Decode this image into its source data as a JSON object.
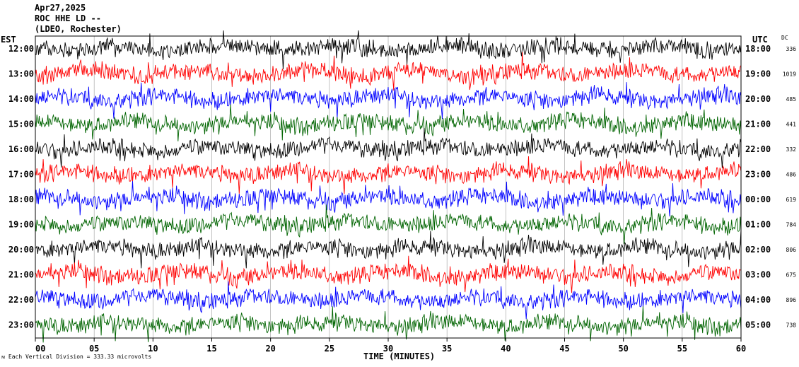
{
  "header": {
    "date": "Apr27,2025",
    "station": "ROC HHE LD --",
    "network": "(LDEO, Rochester)"
  },
  "left_axis_label": "EST",
  "right_axis_label": "UTC",
  "dc_label": "DC",
  "xlabel": "TIME (MINUTES)",
  "footer": "Each Vertical Division = 333.33 microvolts",
  "chart_data": {
    "type": "line",
    "title": "",
    "xlabel": "TIME (MINUTES)",
    "ylabel": "",
    "xlim": [
      0,
      60
    ],
    "x_ticks": [
      "00",
      "05",
      "10",
      "15",
      "20",
      "25",
      "30",
      "35",
      "40",
      "45",
      "50",
      "55",
      "60"
    ],
    "grid": true,
    "trace_colors": [
      "#000000",
      "#ff0000",
      "#0000ff",
      "#006400"
    ],
    "rows": [
      {
        "est": "12:00",
        "utc": "18:00",
        "dc": "336"
      },
      {
        "est": "13:00",
        "utc": "19:00",
        "dc": "1019"
      },
      {
        "est": "14:00",
        "utc": "20:00",
        "dc": "485"
      },
      {
        "est": "15:00",
        "utc": "21:00",
        "dc": "441"
      },
      {
        "est": "16:00",
        "utc": "22:00",
        "dc": "332"
      },
      {
        "est": "17:00",
        "utc": "23:00",
        "dc": "486"
      },
      {
        "est": "18:00",
        "utc": "00:00",
        "dc": "619"
      },
      {
        "est": "19:00",
        "utc": "01:00",
        "dc": "784"
      },
      {
        "est": "20:00",
        "utc": "02:00",
        "dc": "806"
      },
      {
        "est": "21:00",
        "utc": "03:00",
        "dc": "675"
      },
      {
        "est": "22:00",
        "utc": "04:00",
        "dc": "896"
      },
      {
        "est": "23:00",
        "utc": "05:00",
        "dc": "738"
      }
    ]
  }
}
